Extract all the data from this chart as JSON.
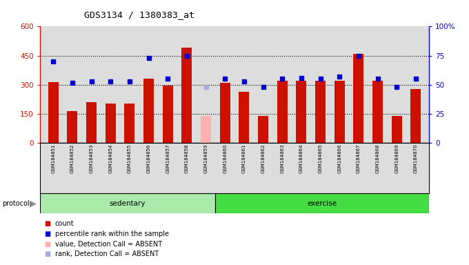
{
  "title": "GDS3134 / 1380383_at",
  "samples": [
    "GSM184851",
    "GSM184852",
    "GSM184853",
    "GSM184854",
    "GSM184855",
    "GSM184856",
    "GSM184857",
    "GSM184858",
    "GSM184859",
    "GSM184860",
    "GSM184861",
    "GSM184862",
    "GSM184863",
    "GSM184864",
    "GSM184865",
    "GSM184866",
    "GSM184867",
    "GSM184868",
    "GSM184869",
    "GSM184870"
  ],
  "counts": [
    315,
    165,
    210,
    205,
    205,
    330,
    295,
    490,
    null,
    310,
    265,
    140,
    320,
    320,
    320,
    320,
    460,
    320,
    140,
    280
  ],
  "absent_count": 140,
  "absent_count_idx": 8,
  "ranks": [
    70,
    52,
    53,
    53,
    53,
    73,
    55,
    75,
    null,
    55,
    53,
    48,
    55,
    56,
    55,
    57,
    75,
    55,
    48,
    55
  ],
  "absent_rank": 48,
  "absent_rank_idx": 8,
  "sedentary_count": 9,
  "exercise_count": 11,
  "bar_color": "#cc1100",
  "absent_bar_color": "#ffb0b0",
  "dot_color": "#0000cc",
  "absent_dot_color": "#aaaadd",
  "plot_bg_color": "#dddddd",
  "left_axis_color": "#cc1100",
  "right_axis_color": "#0000cc",
  "left_ylim": [
    0,
    600
  ],
  "right_ylim": [
    0,
    100
  ],
  "left_yticks": [
    0,
    150,
    300,
    450,
    600
  ],
  "right_yticks": [
    0,
    25,
    50,
    75,
    100
  ],
  "right_yticklabels": [
    "0",
    "25",
    "50",
    "75",
    "100%"
  ],
  "protocol_sedentary_color": "#aaeaaa",
  "protocol_exercise_color": "#44dd44",
  "sedentary_label": "sedentary",
  "exercise_label": "exercise",
  "grid_lines": [
    150,
    300,
    450
  ]
}
